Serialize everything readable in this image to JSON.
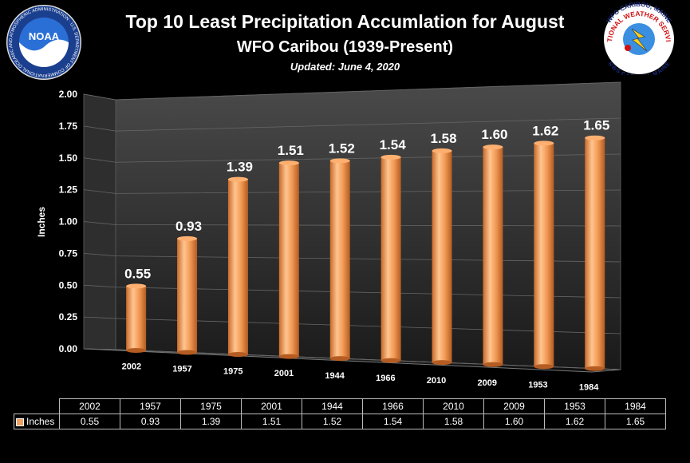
{
  "header": {
    "title": "Top 10 Least Precipitation Accumlation for August",
    "subtitle": "WFO Caribou (1939-Present)",
    "updated": "Updated: June 4, 2020"
  },
  "logos": {
    "noaa_text": "NOAA",
    "noaa_ring": "NATIONAL OCEANIC AND ATMOSPHERIC ADMINISTRATION · U.S. DEPARTMENT OF COMMERCE",
    "nws_top": "WFO CARIBOU, MAINE",
    "nws_ring": "NATIONAL WEATHER SERVICE",
    "nws_bottom": "NWS CARIBOU, MAINE"
  },
  "chart_data": {
    "type": "bar",
    "title": "Top 10 Least Precipitation Accumlation for August",
    "ylabel": "Inches",
    "ylim": [
      0,
      2
    ],
    "yticks": [
      "0.00",
      "0.25",
      "0.50",
      "0.75",
      "1.00",
      "1.25",
      "1.50",
      "1.75",
      "2.00"
    ],
    "categories": [
      "2002",
      "1957",
      "1975",
      "2001",
      "1944",
      "1966",
      "2010",
      "2009",
      "1953",
      "1984"
    ],
    "series": [
      {
        "name": "Inches",
        "values": [
          0.55,
          0.93,
          1.39,
          1.51,
          1.52,
          1.54,
          1.58,
          1.6,
          1.62,
          1.65
        ]
      }
    ],
    "data_labels": [
      "0.55",
      "0.93",
      "1.39",
      "1.51",
      "1.52",
      "1.54",
      "1.58",
      "1.60",
      "1.62",
      "1.65"
    ],
    "bar_color": "#f0a060",
    "grid": true,
    "data_table": true
  }
}
